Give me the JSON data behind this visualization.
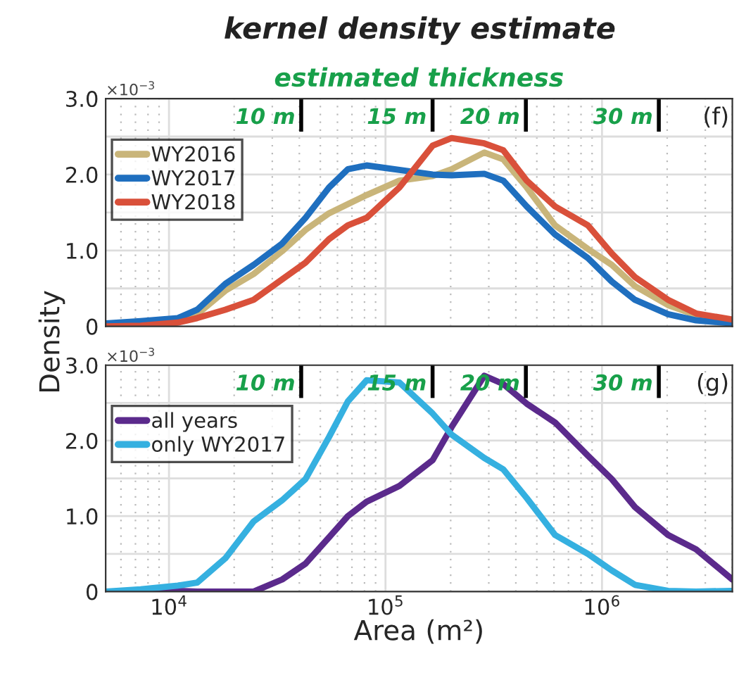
{
  "chart_data": [
    {
      "type": "line",
      "title": "kernel density estimate",
      "ylabel": "Density",
      "annotations": [
        "(f)",
        "×10$^{−3}$",
        "estimated thickness"
      ],
      "x": [
        5100,
        7400,
        11000,
        13500,
        18200,
        24600,
        33300,
        42700,
        54900,
        67000,
        81800,
        116000,
        165000,
        202000,
        286000,
        350000,
        449000,
        607000,
        861000,
        1110000,
        1420000,
        2020000,
        2720000,
        4000000
      ],
      "series": [
        {
          "name": "WY2016",
          "color": "#c9b57a",
          "values": [
            0.01,
            0.02,
            0.07,
            0.16,
            0.47,
            0.69,
            0.99,
            1.27,
            1.49,
            1.61,
            1.73,
            1.92,
            1.98,
            2.07,
            2.29,
            2.2,
            1.83,
            1.33,
            1.02,
            0.81,
            0.53,
            0.28,
            0.15,
            0.07
          ]
        },
        {
          "name": "WY2017",
          "color": "#1f6fbf",
          "values": [
            0.04,
            0.07,
            0.11,
            0.22,
            0.56,
            0.81,
            1.09,
            1.43,
            1.83,
            2.07,
            2.12,
            2.06,
            2.0,
            1.99,
            2.01,
            1.92,
            1.58,
            1.21,
            0.9,
            0.59,
            0.35,
            0.16,
            0.08,
            0.04
          ]
        },
        {
          "name": "WY2018",
          "color": "#d9503a",
          "values": [
            0.0,
            0.01,
            0.05,
            0.11,
            0.22,
            0.35,
            0.62,
            0.84,
            1.15,
            1.33,
            1.43,
            1.83,
            2.38,
            2.48,
            2.41,
            2.32,
            1.92,
            1.58,
            1.33,
            0.96,
            0.65,
            0.35,
            0.17,
            0.09
          ]
        }
      ],
      "log": "x",
      "xlim": [
        5100,
        4000000
      ],
      "ylim": [
        0,
        3.0
      ],
      "yticks": [
        0,
        {
          "value": 0.5,
          "label": null
        },
        {
          "value": 1.0,
          "label": "1.0"
        },
        {
          "value": 1.5,
          "label": null
        },
        {
          "value": 2.0,
          "label": "2.0"
        },
        {
          "value": 2.5,
          "label": null
        },
        {
          "value": 3.0,
          "label": "3.0"
        }
      ],
      "ref_lines": [
        {
          "axis": "x",
          "value": 40800,
          "label": "10 m"
        },
        {
          "axis": "x",
          "value": 165000,
          "label": "15 m"
        },
        {
          "axis": "x",
          "value": 445000,
          "label": "20 m"
        },
        {
          "axis": "x",
          "value": 1830000,
          "label": "30 m"
        }
      ],
      "tick_labels": "y",
      "grid": true,
      "legend": "top left",
      "line_style": "solid",
      "marker": "none"
    },
    {
      "type": "line",
      "xlabel": "Area (m²)",
      "annotations": [
        "(g)",
        "×10$^{−3}$"
      ],
      "x": [
        5100,
        7400,
        11000,
        13500,
        18200,
        24600,
        33300,
        42700,
        54900,
        67000,
        81800,
        116000,
        165000,
        202000,
        286000,
        350000,
        449000,
        607000,
        861000,
        1110000,
        1420000,
        2020000,
        2720000,
        4000000
      ],
      "series": [
        {
          "name": "all years",
          "color": "#5b2a8c",
          "values": [
            0.0,
            0.0,
            0.01,
            0.0,
            0.0,
            0.0,
            0.16,
            0.37,
            0.72,
            1.0,
            1.19,
            1.4,
            1.74,
            2.18,
            2.86,
            2.75,
            2.49,
            2.24,
            1.8,
            1.49,
            1.12,
            0.75,
            0.56,
            0.16
          ]
        },
        {
          "name": "only WY2017",
          "color": "#35b0e0",
          "values": [
            0.0,
            0.03,
            0.08,
            0.12,
            0.44,
            0.93,
            1.21,
            1.49,
            2.05,
            2.52,
            2.8,
            2.77,
            2.36,
            2.08,
            1.77,
            1.62,
            1.24,
            0.75,
            0.5,
            0.28,
            0.09,
            0.01,
            0.0,
            0.01
          ]
        }
      ],
      "log": "x",
      "xlim": [
        5100,
        4000000
      ],
      "xticks": [
        {
          "value": 10000,
          "label": "10$^{4}$"
        },
        {
          "value": 100000,
          "label": "10$^{5}$"
        },
        {
          "value": 1000000,
          "label": "10$^{6}$"
        }
      ],
      "ylim": [
        0,
        3.0
      ],
      "yticks": [
        0,
        {
          "value": 0.5,
          "label": null
        },
        {
          "value": 1.0,
          "label": "1.0"
        },
        {
          "value": 1.5,
          "label": null
        },
        {
          "value": 2.0,
          "label": "2.0"
        },
        {
          "value": 2.5,
          "label": null
        },
        {
          "value": 3.0,
          "label": "3.0"
        }
      ],
      "ref_lines": [
        {
          "axis": "x",
          "value": 40800,
          "label": "10 m"
        },
        {
          "axis": "x",
          "value": 165000,
          "label": "15 m"
        },
        {
          "axis": "x",
          "value": 445000,
          "label": "20 m"
        },
        {
          "axis": "x",
          "value": 1830000,
          "label": "30 m"
        }
      ],
      "grid": true,
      "legend": "top left",
      "line_style": "solid",
      "marker": "none"
    }
  ]
}
